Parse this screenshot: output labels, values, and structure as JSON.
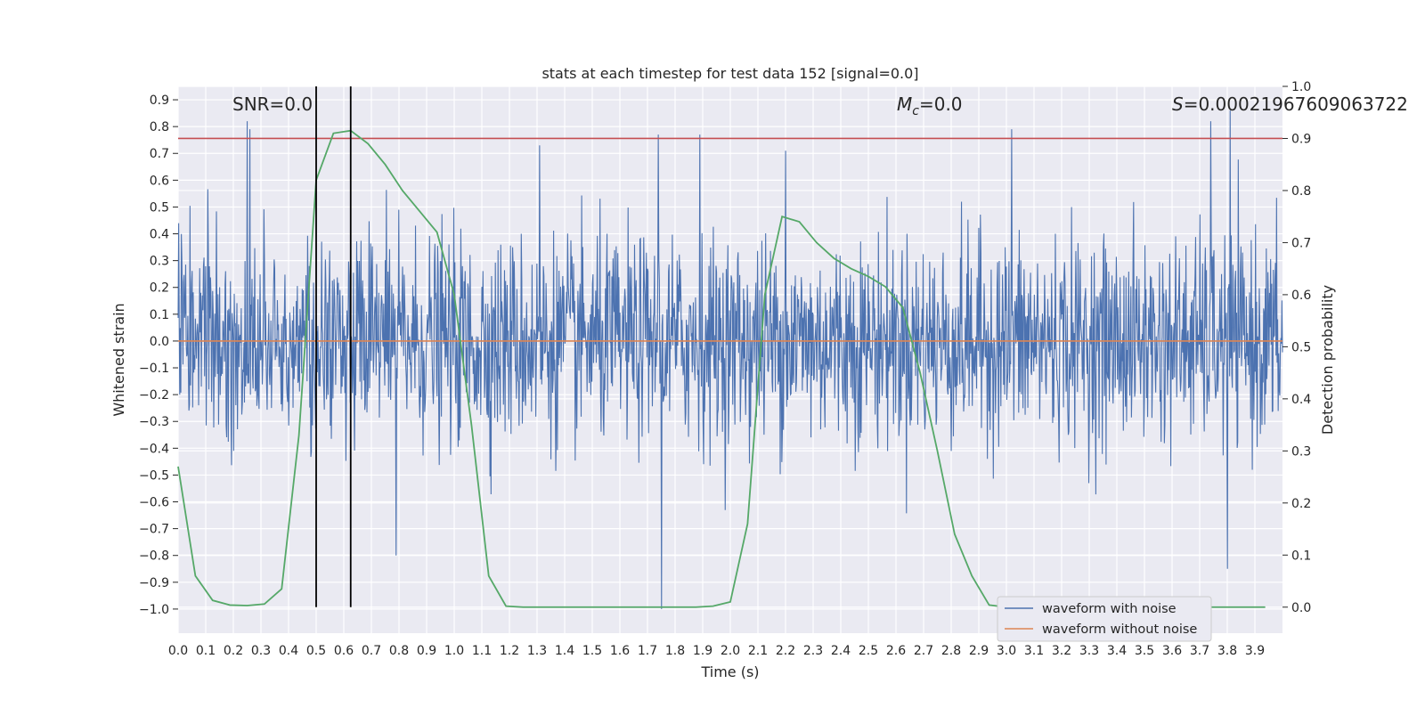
{
  "chart_data": {
    "type": "line",
    "title": "stats at each timestep for test data 152 [signal=0.0]",
    "xlabel": "Time (s)",
    "ylabel": "Whitened strain",
    "ylabel_right": "Detection probability",
    "xlim": [
      0.0,
      4.0
    ],
    "ylim": [
      -1.09,
      0.95
    ],
    "ylim_right": [
      -0.05,
      1.0
    ],
    "x_ticks": [
      "0.0",
      "0.1",
      "0.2",
      "0.3",
      "0.4",
      "0.5",
      "0.6",
      "0.7",
      "0.8",
      "0.9",
      "1.0",
      "1.1",
      "1.2",
      "1.3",
      "1.4",
      "1.5",
      "1.6",
      "1.7",
      "1.8",
      "1.9",
      "2.0",
      "2.1",
      "2.2",
      "2.3",
      "2.4",
      "2.5",
      "2.6",
      "2.7",
      "2.8",
      "2.9",
      "3.0",
      "3.1",
      "3.2",
      "3.3",
      "3.4",
      "3.5",
      "3.6",
      "3.7",
      "3.8",
      "3.9"
    ],
    "y_ticks": [
      "0.9",
      "0.8",
      "0.7",
      "0.6",
      "0.5",
      "0.4",
      "0.3",
      "0.2",
      "0.1",
      "0.0",
      "−0.1",
      "−0.2",
      "−0.3",
      "−0.4",
      "−0.5",
      "−0.6",
      "−0.7",
      "−0.8",
      "−0.9",
      "−1.0"
    ],
    "y_ticks_right": [
      "1.0",
      "0.9",
      "0.8",
      "0.7",
      "0.6",
      "0.5",
      "0.4",
      "0.3",
      "0.2",
      "0.1",
      "0.0"
    ],
    "grid": true,
    "legend_position": "bottom-right",
    "annotations": {
      "snr": "SNR=0.0",
      "mc": "M_c=0.0",
      "s": "S=0.00021967609063722"
    },
    "threshold": {
      "value": 0.9,
      "axis": "right",
      "color": "#c44e52"
    },
    "vertical_markers": {
      "x": [
        0.5,
        0.625
      ],
      "color": "#000000"
    },
    "series": [
      {
        "name": "waveform with noise",
        "color": "#4c72b0",
        "description_values": {
          "noise_std": 0.19,
          "peak_values": [
            {
              "x": 0.25,
              "y": 0.82
            },
            {
              "x": 0.26,
              "y": 0.79
            },
            {
              "x": 0.79,
              "y": -0.8
            },
            {
              "x": 1.31,
              "y": 0.73
            },
            {
              "x": 1.74,
              "y": 0.77
            },
            {
              "x": 1.75,
              "y": -1.0
            },
            {
              "x": 1.89,
              "y": 0.77
            },
            {
              "x": 2.2,
              "y": 0.71
            },
            {
              "x": 3.02,
              "y": 0.79
            },
            {
              "x": 3.74,
              "y": 0.82
            },
            {
              "x": 3.81,
              "y": 0.86
            },
            {
              "x": 3.8,
              "y": -0.85
            }
          ]
        }
      },
      {
        "name": "waveform without noise",
        "color": "#dd8452",
        "x": [
          0.0,
          4.0
        ],
        "values": [
          0.0,
          0.0
        ]
      },
      {
        "color": "#55a868",
        "axis": "right",
        "x": [
          0.0,
          0.0625,
          0.125,
          0.1875,
          0.25,
          0.3125,
          0.375,
          0.4375,
          0.5,
          0.5625,
          0.625,
          0.6875,
          0.75,
          0.8125,
          0.875,
          0.9375,
          1.0,
          1.0625,
          1.125,
          1.1875,
          1.25,
          1.5,
          1.75,
          1.875,
          1.9375,
          2.0,
          2.0625,
          2.125,
          2.1875,
          2.25,
          2.3125,
          2.375,
          2.4375,
          2.5,
          2.5625,
          2.625,
          2.6875,
          2.75,
          2.8125,
          2.875,
          2.9375,
          3.0,
          3.5,
          3.9375
        ],
        "values": [
          0.27,
          0.06,
          0.013,
          0.004,
          0.003,
          0.006,
          0.035,
          0.33,
          0.82,
          0.91,
          0.915,
          0.89,
          0.85,
          0.8,
          0.76,
          0.72,
          0.6,
          0.35,
          0.06,
          0.002,
          0.0,
          0.0,
          0.0,
          0.0,
          0.002,
          0.01,
          0.16,
          0.6,
          0.75,
          0.74,
          0.7,
          0.67,
          0.65,
          0.635,
          0.615,
          0.575,
          0.45,
          0.3,
          0.14,
          0.06,
          0.004,
          0.0,
          0.0,
          0.0
        ]
      }
    ]
  }
}
